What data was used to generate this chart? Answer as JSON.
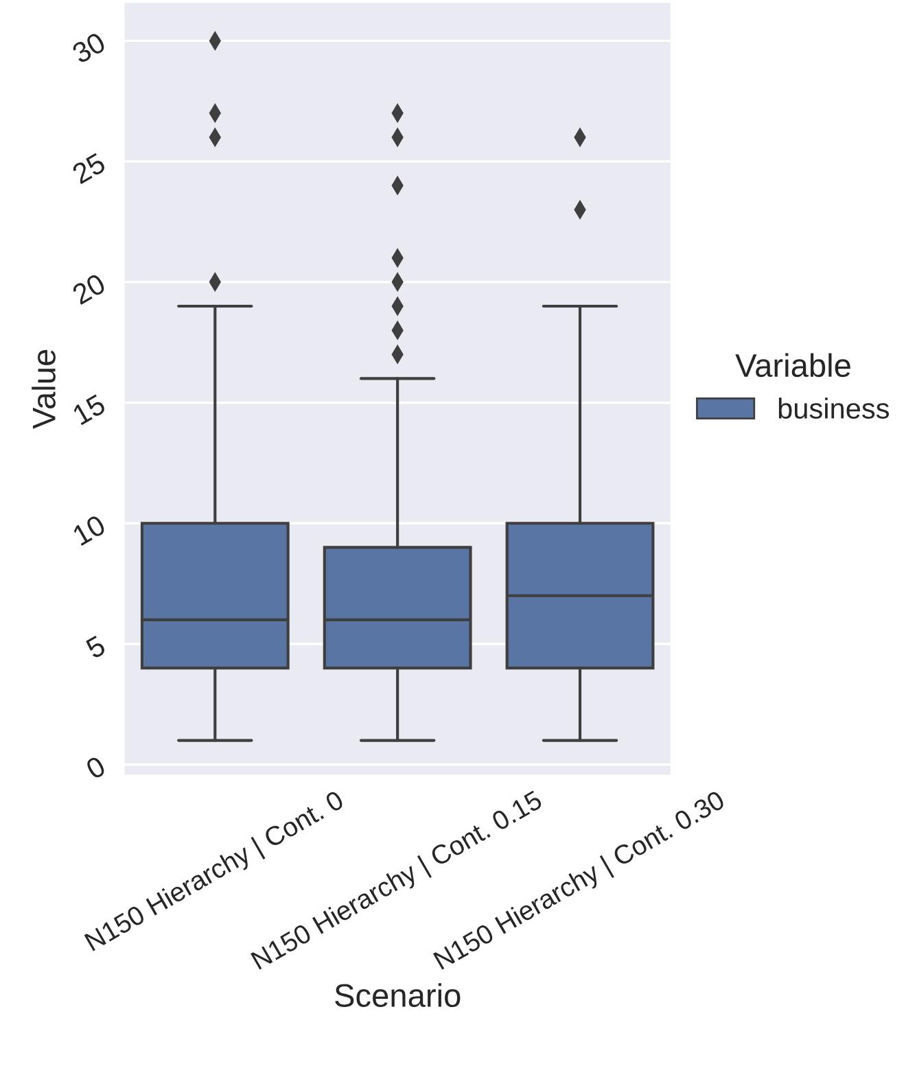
{
  "chart_data": {
    "type": "box",
    "xlabel": "Scenario",
    "ylabel": "Value",
    "legend_title": "Variable",
    "categories": [
      "N150 Hierarchy | Cont. 0",
      "N150 Hierarchy | Cont. 0.15",
      "N150 Hierarchy | Cont. 0.30"
    ],
    "series": [
      {
        "name": "business",
        "color": "#5975a4",
        "boxes": [
          {
            "low": 1,
            "q1": 4,
            "median": 6,
            "q3": 10,
            "high": 19,
            "outliers": [
              20,
              26,
              27,
              30
            ]
          },
          {
            "low": 1,
            "q1": 4,
            "median": 6,
            "q3": 9,
            "high": 16,
            "outliers": [
              17,
              18,
              19,
              20,
              21,
              24,
              26,
              27
            ]
          },
          {
            "low": 1,
            "q1": 4,
            "median": 7,
            "q3": 10,
            "high": 19,
            "outliers": [
              23,
              26
            ]
          }
        ]
      }
    ],
    "ylim": [
      -0.45,
      31.6
    ],
    "yticks": [
      0,
      5,
      10,
      15,
      20,
      25,
      30
    ],
    "grid": "y",
    "legend": "right"
  }
}
